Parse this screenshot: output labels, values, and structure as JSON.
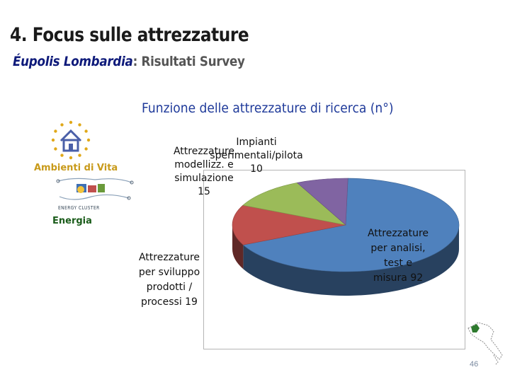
{
  "slide": {
    "title": "4. Focus sulle attrezzature",
    "subtitle_brand": "Éupolis Lombardia",
    "subtitle_rest": ": Risultati Survey",
    "page_number": "46"
  },
  "sidebar": {
    "ambienti_label": "Ambienti di Vita",
    "energy_badge": "ENERGY CLUSTER",
    "energia_label": "Energia"
  },
  "colors": {
    "analisi": "#4f81bd",
    "sviluppo": "#c0504d",
    "modellizzazione": "#9bbb59",
    "impianti": "#8064a2"
  },
  "chart_data": {
    "type": "pie",
    "title": "Funzione delle attrezzature di ricerca (n°)",
    "three_d": true,
    "legend": "none",
    "slices": [
      {
        "key": "analisi",
        "label": "Attrezzature per analisi, test e misura 92",
        "value": 92,
        "color": "#4f81bd"
      },
      {
        "key": "sviluppo",
        "label": "Attrezzature per sviluppo prodotti / processi 19",
        "value": 19,
        "color": "#c0504d"
      },
      {
        "key": "modellizzazione",
        "label": "Attrezzature modellizz. e simulazione 15",
        "value": 15,
        "color": "#9bbb59"
      },
      {
        "key": "impianti",
        "label": "Impianti sperimentali/pilota 10",
        "value": 10,
        "color": "#8064a2"
      }
    ],
    "data_labels": {
      "analisi": [
        "Attrezzature",
        "per analisi,",
        "test e",
        "misura 92"
      ],
      "sviluppo": [
        "Attrezzature",
        "per sviluppo",
        "prodotti /",
        "processi 19"
      ],
      "modellizzazione": [
        "Attrezzature",
        "modellizz. e",
        "simulazione",
        "15"
      ],
      "impianti": [
        "Impianti",
        "sperimentali/pilota",
        "10"
      ]
    }
  }
}
